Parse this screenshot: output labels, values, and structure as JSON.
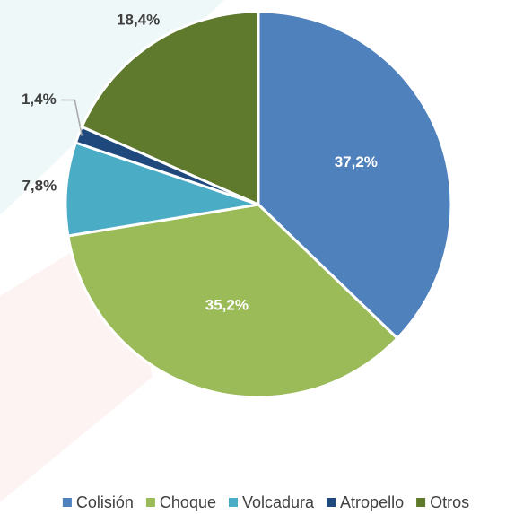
{
  "chart_data": {
    "type": "pie",
    "categories": [
      "Colisión",
      "Choque",
      "Volcadura",
      "Atropello",
      "Otros"
    ],
    "values": [
      37.2,
      35.2,
      7.8,
      1.4,
      18.4
    ],
    "value_labels": [
      "37,2%",
      "35,2%",
      "7,8%",
      "1,4%",
      "18,4%"
    ],
    "colors": [
      "#4f81bd",
      "#9bbb59",
      "#4bacc6",
      "#1f497d",
      "#5f7a2d"
    ],
    "legend": "bottom"
  }
}
